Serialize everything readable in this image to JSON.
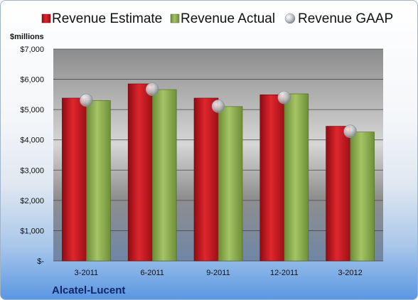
{
  "chart_data": {
    "type": "bar",
    "company": "Alcatel-Lucent",
    "unit_label": "$millions",
    "categories": [
      "3-2011",
      "6-2011",
      "9-2011",
      "12-2011",
      "3-2012"
    ],
    "series": [
      {
        "name": "Revenue Estimate",
        "kind": "bar",
        "color": "#c0161f",
        "values": [
          5380,
          5850,
          5380,
          5490,
          4450
        ]
      },
      {
        "name": "Revenue Actual",
        "kind": "bar",
        "color": "#8fb04f",
        "values": [
          5300,
          5660,
          5100,
          5520,
          4260
        ]
      },
      {
        "name": "Revenue GAAP",
        "kind": "marker",
        "color": "#b8bcc4",
        "values": [
          5310,
          5670,
          5110,
          5400,
          4280
        ]
      }
    ],
    "ylim": [
      0,
      7000
    ],
    "yticks": [
      0,
      1000,
      2000,
      3000,
      4000,
      5000,
      6000,
      7000
    ],
    "ytick_labels": [
      "$-",
      "$1,000",
      "$2,000",
      "$3,000",
      "$4,000",
      "$5,000",
      "$6,000",
      "$7,000"
    ],
    "grid": true,
    "legend_position": "top"
  }
}
